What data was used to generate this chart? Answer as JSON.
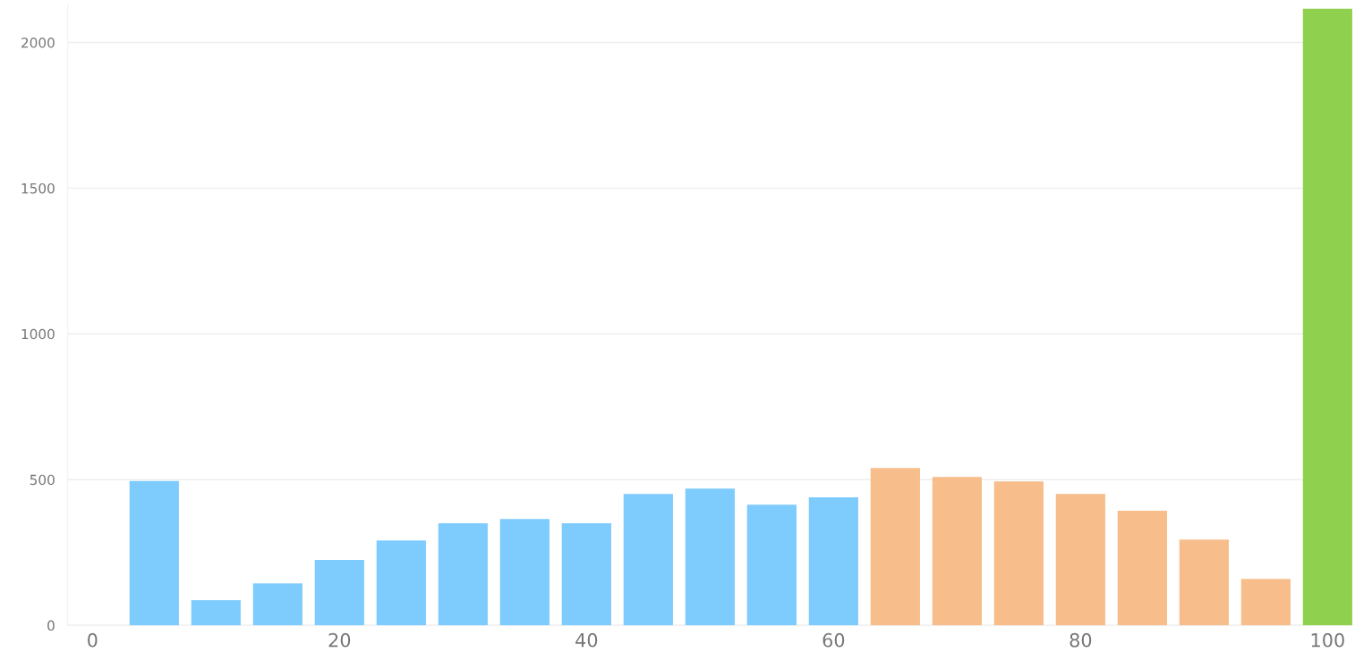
{
  "chart_data": {
    "type": "bar",
    "x": [
      5,
      10,
      15,
      20,
      25,
      30,
      35,
      40,
      45,
      50,
      55,
      60,
      65,
      70,
      75,
      80,
      85,
      90,
      95,
      100
    ],
    "values": [
      495,
      86,
      144,
      224,
      291,
      350,
      365,
      350,
      451,
      469,
      414,
      439,
      540,
      509,
      494,
      451,
      393,
      294,
      159,
      2116
    ],
    "colors": [
      "#7ecbfe",
      "#7ecbfe",
      "#7ecbfe",
      "#7ecbfe",
      "#7ecbfe",
      "#7ecbfe",
      "#7ecbfe",
      "#7ecbfe",
      "#7ecbfe",
      "#7ecbfe",
      "#7ecbfe",
      "#7ecbfe",
      "#f7bd8b",
      "#f7bd8b",
      "#f7bd8b",
      "#f7bd8b",
      "#f7bd8b",
      "#f7bd8b",
      "#f7bd8b",
      "#8fd14f"
    ],
    "xlim": [
      -2,
      102
    ],
    "xticks": [
      0,
      20,
      40,
      60,
      80,
      100
    ],
    "ylim": [
      0,
      2130
    ],
    "yticks": [
      0,
      500,
      1000,
      1500,
      2000
    ],
    "grid": "y"
  }
}
